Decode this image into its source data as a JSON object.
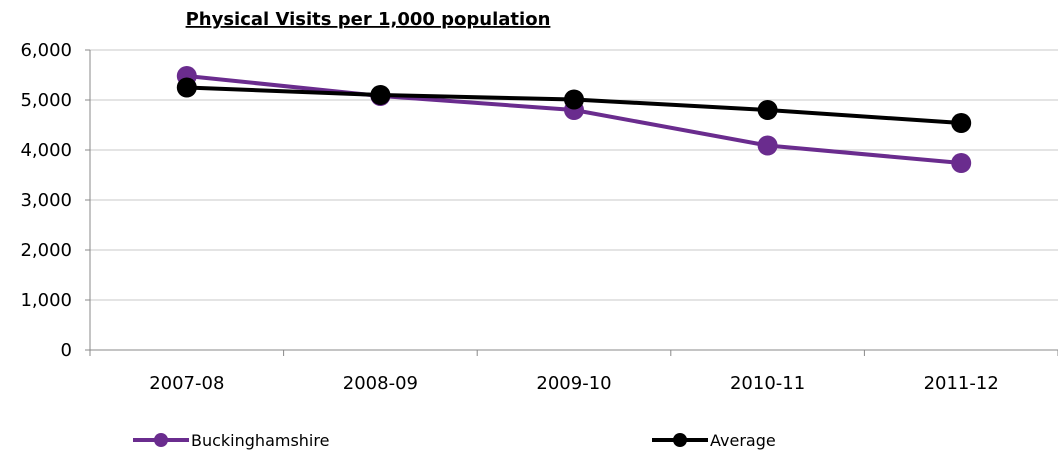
{
  "chart_data": {
    "type": "line",
    "title": "Physical Visits per 1,000 population",
    "xlabel": "",
    "ylabel": "",
    "categories": [
      "2007-08",
      "2008-09",
      "2009-10",
      "2010-11",
      "2011-12"
    ],
    "ylim": [
      0,
      6000
    ],
    "yticks": [
      0,
      1000,
      2000,
      3000,
      4000,
      5000,
      6000
    ],
    "ytick_labels": [
      "0",
      "1,000",
      "2,000",
      "3,000",
      "4,000",
      "5,000",
      "6,000"
    ],
    "grid": "horizontal",
    "legend_position": "bottom",
    "series": [
      {
        "name": "Buckinghamshire",
        "color": "#6a2c8e",
        "values": [
          5480,
          5080,
          4800,
          4090,
          3740
        ]
      },
      {
        "name": "Average",
        "color": "#000000",
        "values": [
          5250,
          5100,
          5010,
          4800,
          4540
        ]
      }
    ]
  }
}
